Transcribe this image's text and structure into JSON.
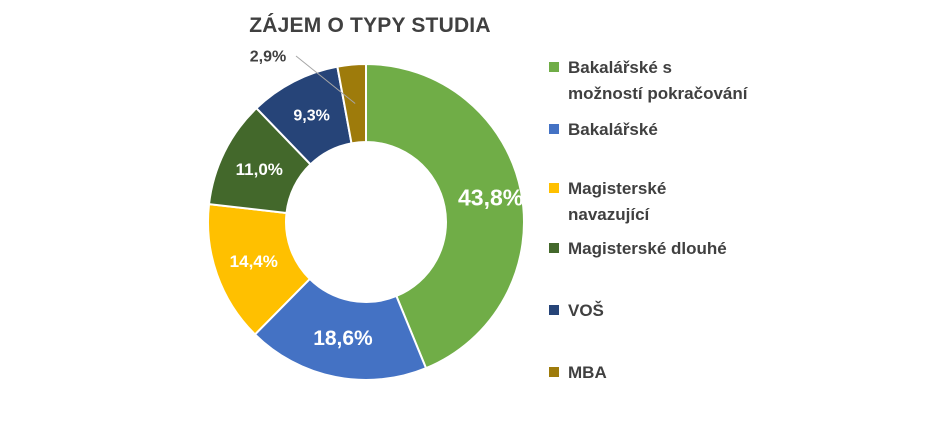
{
  "chart_data": {
    "type": "donut",
    "title": "ZÁJEM O TYPY STUDIA",
    "legend_position": "right",
    "series": [
      {
        "name": "Bakalářské s možností pokračování",
        "legend_label": "Bakalářské s\nmožností pokračování",
        "value": 43.8,
        "label": "43,8%",
        "color": "#70AD47",
        "label_color": "#ffffff"
      },
      {
        "name": "Bakalářské",
        "legend_label": "Bakalářské",
        "value": 18.6,
        "label": "18,6%",
        "color": "#4472C4",
        "label_color": "#ffffff"
      },
      {
        "name": "Magisterské navazující",
        "legend_label": "Magisterské\nnavazující",
        "value": 14.4,
        "label": "14,4%",
        "color": "#FFC000",
        "label_color": "#ffffff"
      },
      {
        "name": "Magisterské dlouhé",
        "legend_label": "Magisterské dlouhé",
        "value": 11.0,
        "label": "11,0%",
        "color": "#43682B",
        "label_color": "#ffffff"
      },
      {
        "name": "VOŠ",
        "legend_label": "VOŠ",
        "value": 9.3,
        "label": "9,3%",
        "color": "#264478",
        "label_color": "#ffffff"
      },
      {
        "name": "MBA",
        "legend_label": "MBA",
        "value": 2.9,
        "label": "2,9%",
        "color": "#9E7B0B",
        "label_color": "#404040"
      }
    ]
  }
}
